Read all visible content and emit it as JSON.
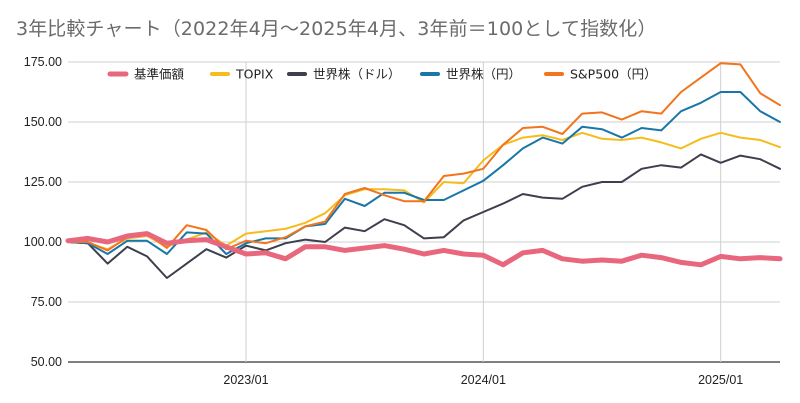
{
  "chart_data": {
    "type": "line",
    "title": "3年比較チャート（2022年4月～2025年4月、3年前＝100として指数化）",
    "xlabel": "",
    "ylabel": "",
    "ylim": [
      50,
      175
    ],
    "y_ticks": [
      50,
      75,
      100,
      125,
      150,
      175
    ],
    "y_tick_labels": [
      "50.00",
      "75.00",
      "100.00",
      "125.00",
      "150.00",
      "175.00"
    ],
    "x_tick_labels": [
      "2023/01",
      "2024/01",
      "2025/01"
    ],
    "x_tick_positions": [
      "2023-01",
      "2024-01",
      "2025-01"
    ],
    "grid": true,
    "legend_position": "top",
    "x": [
      "2022-04",
      "2022-05",
      "2022-06",
      "2022-07",
      "2022-08",
      "2022-09",
      "2022-10",
      "2022-11",
      "2022-12",
      "2023-01",
      "2023-02",
      "2023-03",
      "2023-04",
      "2023-05",
      "2023-06",
      "2023-07",
      "2023-08",
      "2023-09",
      "2023-10",
      "2023-11",
      "2023-12",
      "2024-01",
      "2024-02",
      "2024-03",
      "2024-04",
      "2024-05",
      "2024-06",
      "2024-07",
      "2024-08",
      "2024-09",
      "2024-10",
      "2024-11",
      "2024-12",
      "2025-01",
      "2025-02",
      "2025-03",
      "2025-04"
    ],
    "series": [
      {
        "name": "基準価額",
        "color": "#e8677d",
        "width": 5,
        "values": [
          100.5,
          101.5,
          100,
          102.5,
          103.5,
          99.5,
          100.5,
          101,
          98,
          95,
          95.5,
          93,
          98,
          98,
          96.5,
          97.5,
          98.5,
          97,
          95,
          96.5,
          95,
          94.5,
          90.5,
          95.5,
          96.5,
          93,
          92,
          92.5,
          92,
          94.5,
          93.5,
          91.5,
          90.5,
          94,
          93,
          93.5,
          93
        ]
      },
      {
        "name": "TOPIX",
        "color": "#f5bc1c",
        "width": 2,
        "values": [
          100,
          99.5,
          97,
          101.5,
          102.5,
          98,
          101,
          104,
          98.5,
          103.5,
          104.5,
          105.5,
          108,
          112,
          119.5,
          122,
          122,
          121.5,
          116.5,
          125,
          124.5,
          134,
          140.5,
          143.5,
          144.5,
          142.5,
          145.5,
          143,
          142.5,
          143.5,
          141.5,
          139,
          143,
          145.5,
          143.5,
          142.5,
          139.5
        ]
      },
      {
        "name": "世界株（ドル）",
        "color": "#3d3f4e",
        "width": 2,
        "values": [
          100,
          99.5,
          91,
          98,
          94,
          85,
          91,
          97,
          93.5,
          98.5,
          96.5,
          99.5,
          101,
          100,
          106,
          104.5,
          109.5,
          107,
          101.5,
          102,
          109,
          112.5,
          116,
          120,
          118.5,
          118,
          123,
          125,
          125,
          130.5,
          132,
          131,
          136.5,
          133,
          136,
          134.5,
          130.5
        ]
      },
      {
        "name": "世界株（円）",
        "color": "#1a76a8",
        "width": 2,
        "values": [
          100,
          99.5,
          95,
          100.5,
          100.5,
          95,
          104,
          103.5,
          95,
          99.5,
          101.5,
          101.5,
          106.5,
          107.5,
          118,
          115,
          120.5,
          120.5,
          117.5,
          117.5,
          121.5,
          125.5,
          132,
          139,
          143.5,
          141,
          148,
          147,
          143.5,
          147.5,
          146.5,
          154.5,
          158,
          162.5,
          162.5,
          154.5,
          150
        ]
      },
      {
        "name": "S&P500（円）",
        "color": "#f2741c",
        "width": 2,
        "values": [
          100,
          100,
          96.5,
          102,
          103.5,
          97.5,
          107,
          105,
          97,
          100.5,
          99.5,
          102,
          106.5,
          108.5,
          120,
          122.5,
          119.5,
          117,
          117,
          127.5,
          128.5,
          130.5,
          140.5,
          147.5,
          148,
          145,
          153.5,
          154,
          151,
          154.5,
          153.5,
          162.5,
          168.5,
          174.5,
          174,
          162,
          157
        ]
      }
    ]
  }
}
